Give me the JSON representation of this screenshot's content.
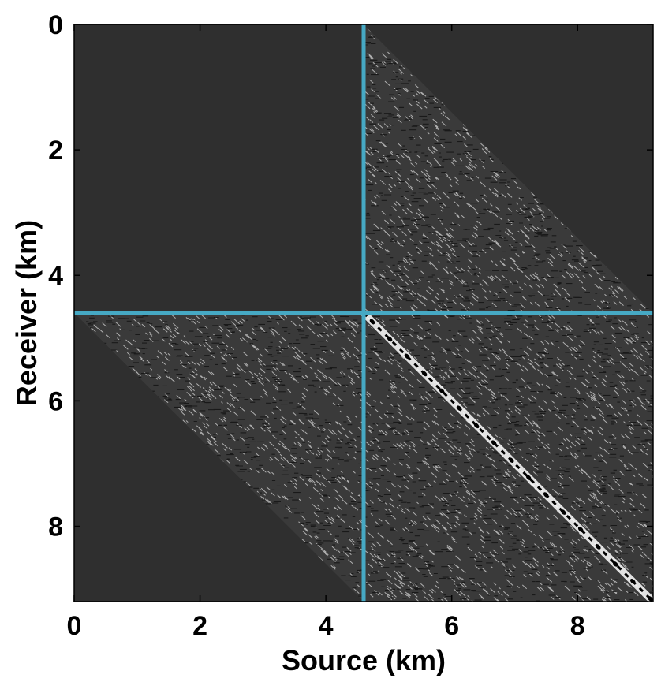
{
  "chart_data": {
    "type": "heatmap",
    "title": "",
    "xlabel": "Source (km)",
    "ylabel": "Receiver (km)",
    "xlim": [
      0,
      9.2
    ],
    "ylim": [
      0,
      9.2
    ],
    "y_axis_direction": "down",
    "x_ticks": [
      0,
      2,
      4,
      6,
      8
    ],
    "y_ticks": [
      0,
      2,
      4,
      6,
      8
    ],
    "x_tick_labels": [
      "0",
      "2",
      "4",
      "6",
      "8"
    ],
    "y_tick_labels": [
      "0",
      "2",
      "4",
      "6",
      "8"
    ],
    "grid": false,
    "colormap": "grayscale",
    "background_color": "#2f2f2f",
    "regions": [
      {
        "name": "upper-right wavefield",
        "source_range": [
          4.6,
          9.2
        ],
        "receiver_range": [
          0,
          4.6
        ]
      },
      {
        "name": "lower-left wavefield",
        "source_range": [
          0,
          4.6
        ],
        "receiver_range": [
          4.6,
          9.2
        ]
      },
      {
        "name": "lower-right wavefield",
        "source_range": [
          4.6,
          9.2
        ],
        "receiver_range": [
          4.6,
          9.2
        ]
      }
    ],
    "reference_lines": [
      {
        "orientation": "vertical",
        "source": 4.6,
        "color": "#46a9c4"
      },
      {
        "orientation": "horizontal",
        "receiver": 4.6,
        "color": "#46a9c4"
      }
    ],
    "diagonal_feature": {
      "from": [
        4.6,
        4.6
      ],
      "to": [
        9.2,
        9.2
      ],
      "description": "strong bright diagonal events"
    }
  }
}
